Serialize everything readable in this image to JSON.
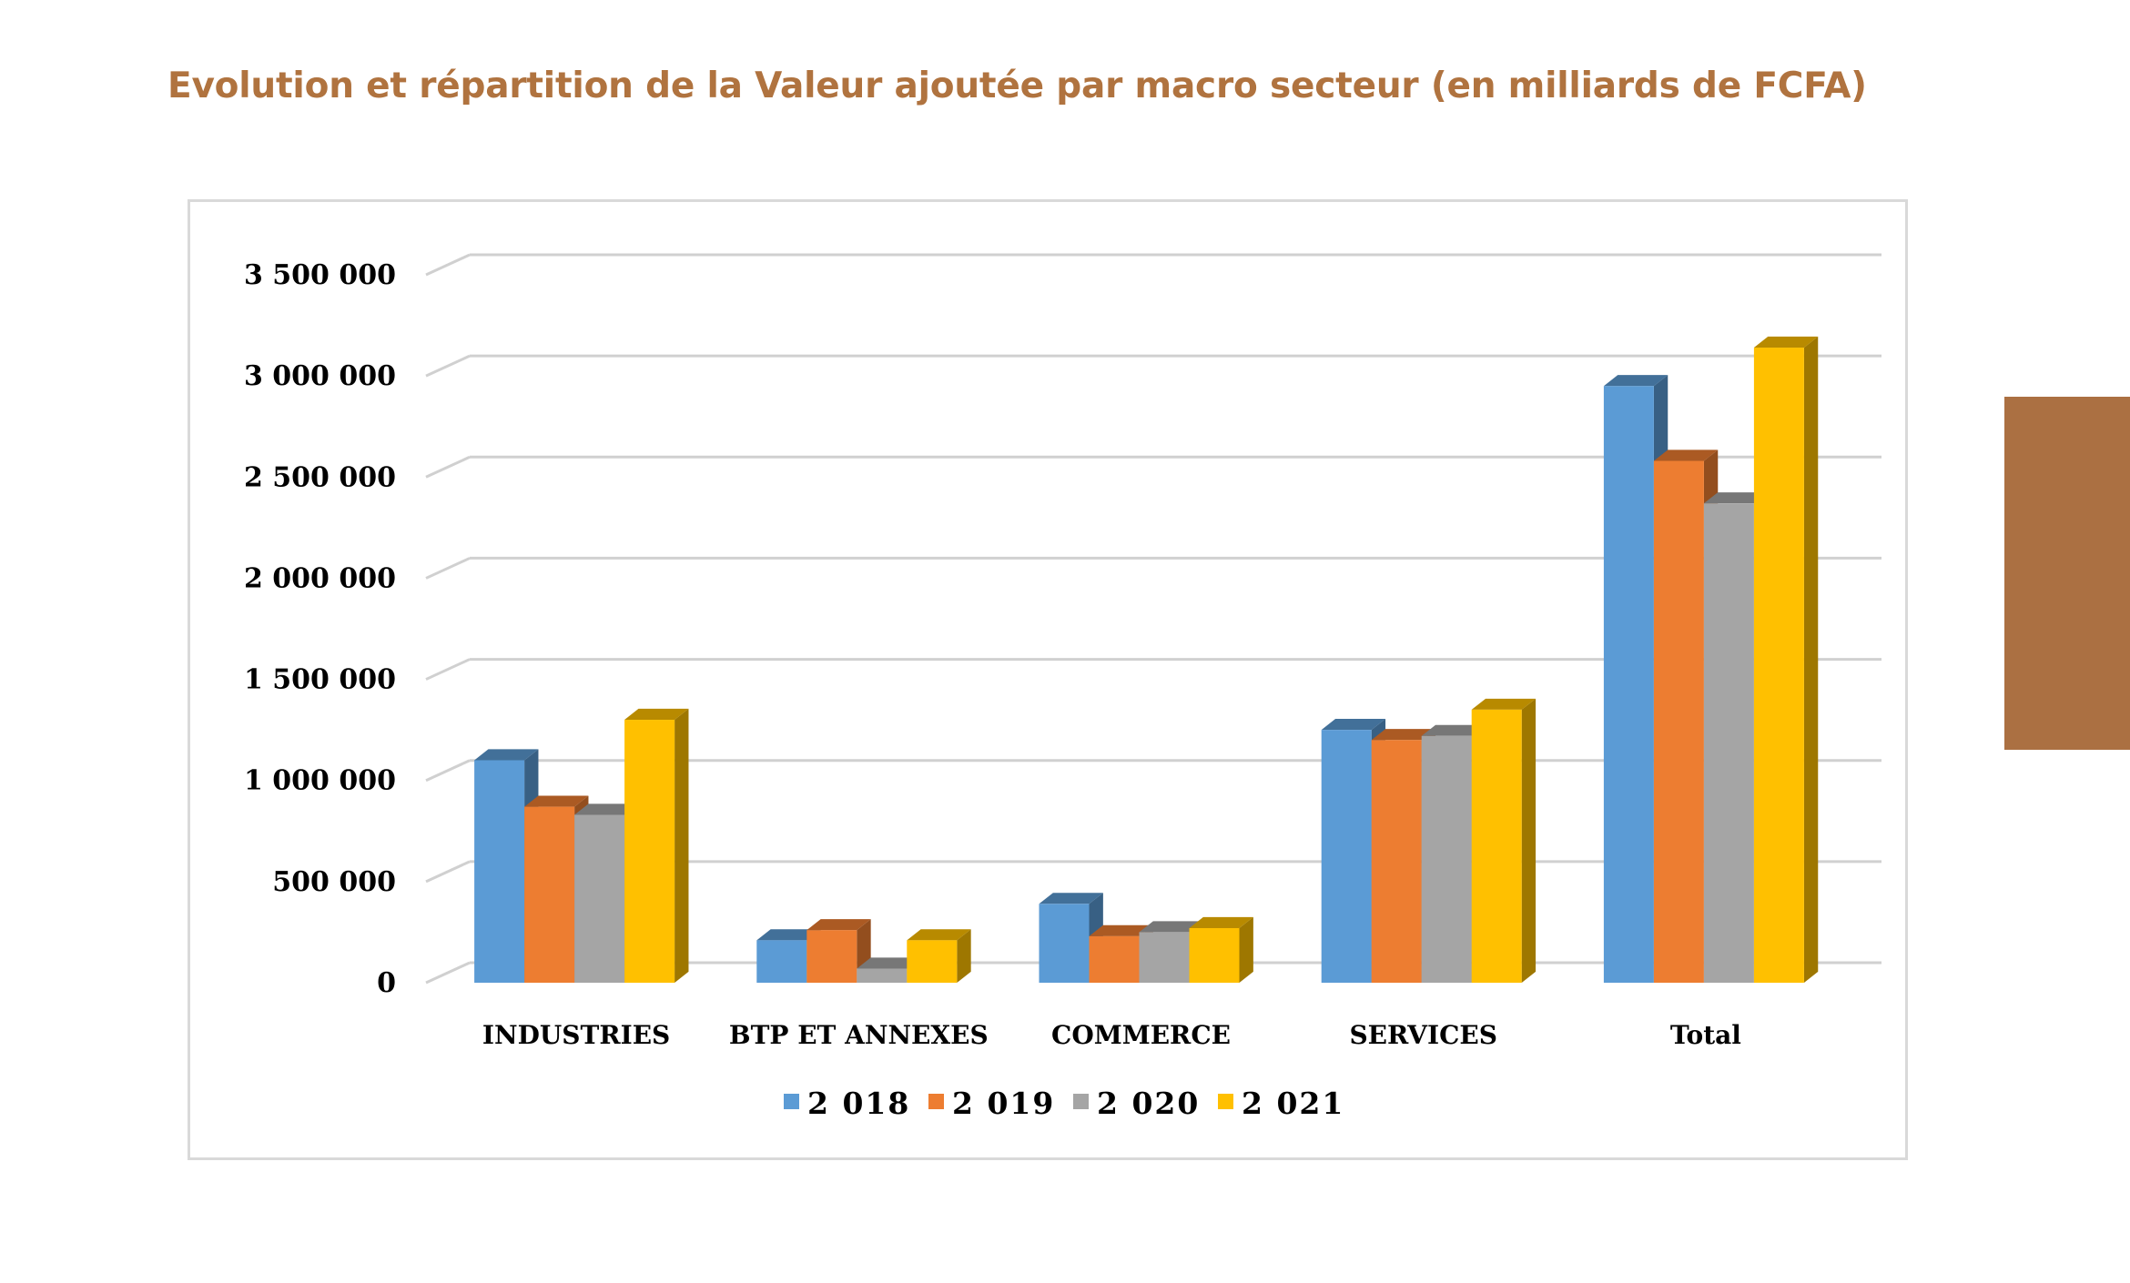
{
  "page": {
    "title": "Evolution et répartition de la Valeur ajoutée par macro secteur (en milliards de FCFA)"
  },
  "chart_data": {
    "type": "bar",
    "title": "",
    "xlabel": "",
    "ylabel": "",
    "categories": [
      "INDUSTRIES",
      "BTP ET ANNEXES",
      "COMMERCE",
      "SERVICES",
      "Total"
    ],
    "series": [
      {
        "name": "2 018",
        "color": "#5B9BD5",
        "values": [
          1100000,
          210000,
          390000,
          1250000,
          2950000
        ]
      },
      {
        "name": "2 019",
        "color": "#ED7D31",
        "values": [
          870000,
          260000,
          230000,
          1200000,
          2580000
        ]
      },
      {
        "name": "2 020",
        "color": "#A5A5A5",
        "values": [
          830000,
          70000,
          250000,
          1220000,
          2370000
        ]
      },
      {
        "name": "2 021",
        "color": "#FFC000",
        "values": [
          1300000,
          210000,
          270000,
          1350000,
          3140000
        ]
      }
    ],
    "ylim": [
      0,
      3500000
    ],
    "yticks": [
      0,
      500000,
      1000000,
      1500000,
      2000000,
      2500000,
      3000000,
      3500000
    ],
    "ytick_labels": [
      "0",
      "500 000",
      "1 000 000",
      "1 500 000",
      "2 000 000",
      "2 500 000",
      "3 000 000",
      "3 500 000"
    ],
    "grid": true,
    "legend_position": "bottom",
    "style": "3d-clustered-column"
  }
}
